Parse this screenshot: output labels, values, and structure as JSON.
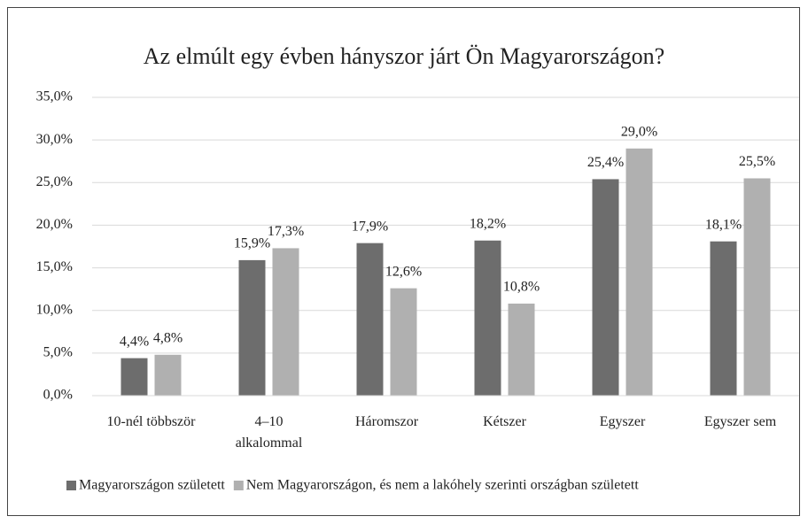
{
  "chart_data": {
    "type": "bar",
    "title": "Az elmúlt egy évben hányszor járt Ön Magyarországon?",
    "categories": [
      "10-nél többször",
      "4–10\nalkalommal",
      "Háromszor",
      "Kétszer",
      "Egyszer",
      "Egyszer sem"
    ],
    "series": [
      {
        "name": "Magyarországon született",
        "color": "#6d6d6d",
        "values": [
          4.4,
          15.9,
          17.9,
          18.2,
          25.4,
          18.1
        ],
        "value_labels": [
          "4,4%",
          "15,9%",
          "17,9%",
          "18,2%",
          "25,4%",
          "18,1%"
        ]
      },
      {
        "name": "Nem Magyarországon, és nem a lakóhely szerinti országban született",
        "color": "#b0b0b0",
        "values": [
          4.8,
          17.3,
          12.6,
          10.8,
          29.0,
          25.5
        ],
        "value_labels": [
          "4,8%",
          "17,3%",
          "12,6%",
          "10,8%",
          "29,0%",
          "25,5%"
        ]
      }
    ],
    "ylim": [
      0,
      35
    ],
    "yticks": [
      {
        "value": 0,
        "label": "0,0%"
      },
      {
        "value": 5,
        "label": "5,0%"
      },
      {
        "value": 10,
        "label": "10,0%"
      },
      {
        "value": 15,
        "label": "15,0%"
      },
      {
        "value": 20,
        "label": "20,0%"
      },
      {
        "value": 25,
        "label": "25,0%"
      },
      {
        "value": 30,
        "label": "30,0%"
      },
      {
        "value": 35,
        "label": "35,0%"
      }
    ],
    "grid": true,
    "legend": "bottom"
  }
}
